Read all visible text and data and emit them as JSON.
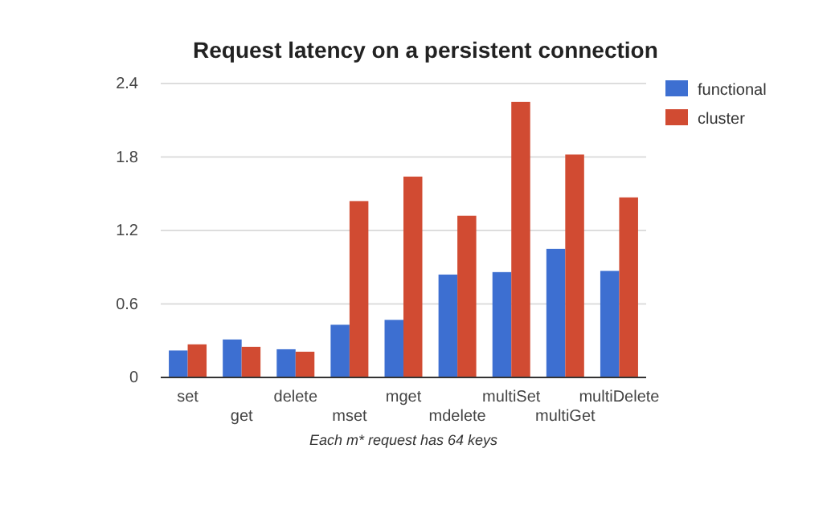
{
  "chart_data": {
    "type": "bar",
    "title": "Request latency on a persistent connection",
    "categories": [
      "set",
      "get",
      "delete",
      "mset",
      "mget",
      "mdelete",
      "multiSet",
      "multiGet",
      "multiDelete"
    ],
    "series": [
      {
        "name": "functional",
        "color": "#3d6fd1",
        "values": [
          0.22,
          0.31,
          0.23,
          0.43,
          0.47,
          0.84,
          0.86,
          1.05,
          0.87
        ]
      },
      {
        "name": "cluster",
        "color": "#d14b32",
        "values": [
          0.27,
          0.25,
          0.21,
          1.44,
          1.64,
          1.32,
          2.25,
          1.82,
          1.47
        ]
      }
    ],
    "ylim": [
      0,
      2.4
    ],
    "yticks": [
      0,
      0.6,
      1.2,
      1.8,
      2.4
    ],
    "grid": "y",
    "legend": "top right",
    "annotations": [
      "Each m* request has 64 keys"
    ]
  }
}
